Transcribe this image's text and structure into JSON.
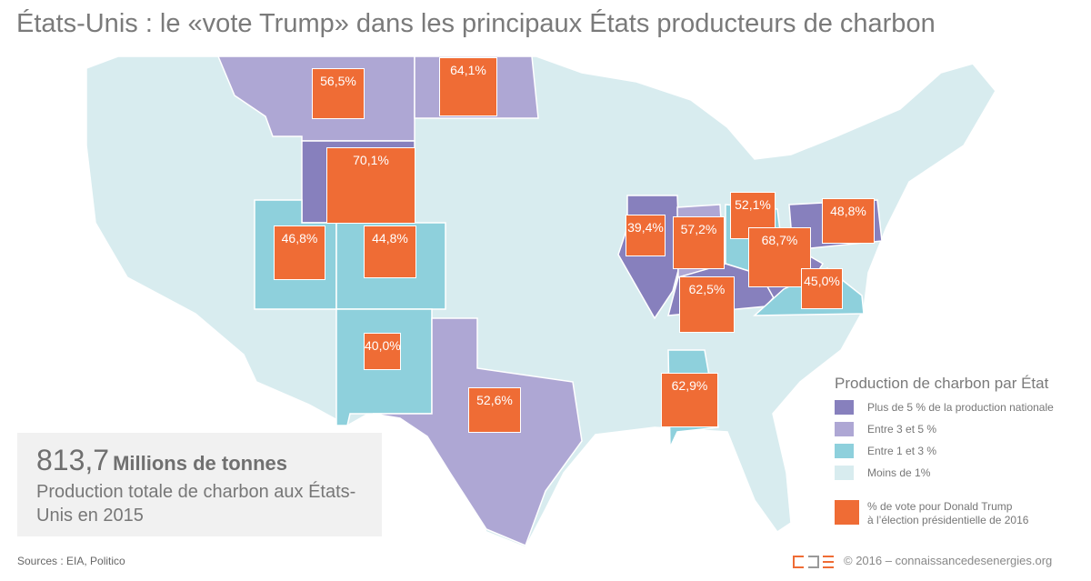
{
  "title": "États-Unis : le «vote Trump» dans les principaux États producteurs de charbon",
  "colors": {
    "more_than_5": "#8780bd",
    "between_3_5": "#aea7d4",
    "between_1_3": "#8ed0dc",
    "less_than_1": "#d8ecef",
    "vote": "#ef6c35"
  },
  "votes": [
    "56,5%",
    "64,1%",
    "70,1%",
    "46,8%",
    "44,8%",
    "40,0%",
    "52,6%",
    "39,4%",
    "57,2%",
    "52,1%",
    "68,7%",
    "48,8%",
    "45,0%",
    "62,5%",
    "62,9%"
  ],
  "stat": {
    "value": "813,7",
    "unit": "Millions de tonnes",
    "description": "Production totale de charbon aux États-Unis en 2015"
  },
  "sources": "Sources : EIA, Politico",
  "legend": {
    "title": "Production de charbon par État",
    "items": [
      "Plus de  5 % de la production nationale",
      "Entre 3 et  5 %",
      "Entre 1 et 3  %",
      "Moins de 1%"
    ],
    "vote_label_line1": "% de vote pour Donald Trump",
    "vote_label_line2": "à l’élection présidentielle de 2016"
  },
  "copyright": "© 2016 – connaissancedesenergies.org"
}
